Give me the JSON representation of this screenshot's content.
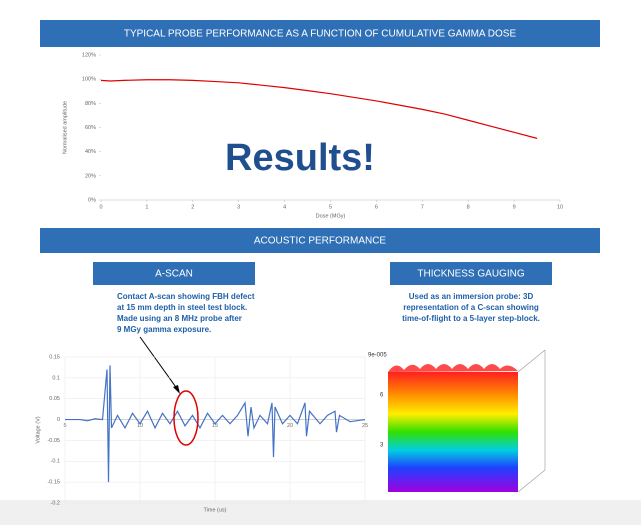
{
  "header": {
    "title": "TYPICAL PROBE PERFORMANCE AS A FUNCTION OF CUMULATIVE GAMMA DOSE"
  },
  "overlay": "Results!",
  "section": "ACOUSTIC PERFORMANCE",
  "ascan": {
    "title": "A-SCAN",
    "caption_lines": [
      "Contact A-scan showing FBH defect",
      "at 15 mm depth in steel test block.",
      "Made using an 8 MHz probe after",
      "9 MGy gamma exposure."
    ]
  },
  "thickness": {
    "title": "THICKNESS GAUGING",
    "caption_lines": [
      "Used as an immersion probe: 3D",
      "representation of a C-scan showing",
      "time-of-flight to a 5-layer step-block."
    ],
    "axis_labels": [
      "9e-005",
      "6",
      "3"
    ]
  },
  "chart_data": [
    {
      "type": "line",
      "xlabel": "Dose (MGy)",
      "ylabel": "Normalised amplitude",
      "color": "#e00000",
      "x": [
        0,
        0.2,
        0.5,
        1,
        1.5,
        2,
        2.5,
        3,
        3.5,
        4,
        4.5,
        5,
        5.5,
        6,
        6.5,
        7,
        7.5,
        8,
        8.5,
        9,
        9.5
      ],
      "values": [
        99,
        98.5,
        99,
        99.5,
        99.5,
        99,
        98,
        97,
        95,
        93,
        90.5,
        88,
        85,
        82,
        78.5,
        75,
        71,
        66,
        61,
        56,
        51
      ],
      "xlim": [
        0,
        10
      ],
      "xticks": [
        0,
        1,
        2,
        3,
        4,
        5,
        6,
        7,
        8,
        9,
        10
      ],
      "ylim": [
        0,
        120
      ],
      "yticks": [
        {
          "value": 0,
          "label": "0%"
        },
        {
          "value": 20,
          "label": "20%"
        },
        {
          "value": 40,
          "label": "40%"
        },
        {
          "value": 60,
          "label": "60%"
        },
        {
          "value": 80,
          "label": "80%"
        },
        {
          "value": 100,
          "label": "100%"
        },
        {
          "value": 120,
          "label": "120%"
        }
      ],
      "grid": false
    },
    {
      "type": "line",
      "xlabel": "Time (us)",
      "ylabel": "Voltage (V)",
      "color": "#4472c4",
      "x": [
        5,
        6,
        6.5,
        7,
        7.5,
        7.8,
        7.9,
        8.0,
        8.1,
        8.5,
        9,
        9.5,
        10,
        10.5,
        11,
        11.5,
        12,
        12.5,
        13,
        13.5,
        14,
        14.5,
        15,
        15.5,
        16,
        16.5,
        17,
        17.2,
        17.4,
        17.6,
        18,
        18.5,
        18.8,
        18.9,
        19,
        19.5,
        20,
        20.5,
        21,
        21.1,
        21.3,
        22,
        22.5,
        23,
        23.1,
        23.3,
        24,
        25
      ],
      "values": [
        0,
        0,
        -0.003,
        0.002,
        0,
        0.12,
        -0.15,
        0.13,
        -0.02,
        0.01,
        -0.02,
        0.015,
        -0.01,
        0.02,
        -0.02,
        0.015,
        -0.01,
        0.02,
        -0.015,
        0.01,
        -0.02,
        0.015,
        -0.01,
        0.01,
        -0.01,
        0.01,
        0.04,
        -0.04,
        0.03,
        -0.02,
        0.01,
        -0.01,
        0.04,
        -0.09,
        0.03,
        -0.01,
        0.01,
        -0.01,
        0.04,
        -0.04,
        0.02,
        -0.01,
        0.01,
        0.02,
        -0.03,
        0.01,
        -0.005,
        0
      ],
      "xlim": [
        5,
        25
      ],
      "xticks": [
        5,
        10,
        15,
        20,
        25
      ],
      "ylim": [
        -0.2,
        0.15
      ],
      "yticks": [
        0.15,
        0.1,
        0.05,
        0,
        -0.05,
        -0.1,
        -0.15,
        -0.2
      ],
      "grid": true
    }
  ]
}
